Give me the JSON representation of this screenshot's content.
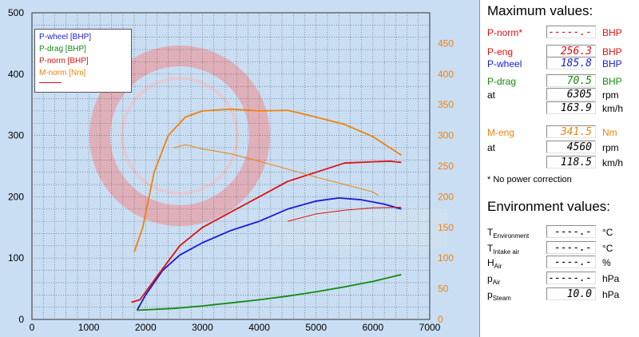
{
  "colors": {
    "wheel": "#1a1ad6",
    "drag": "#128a12",
    "norm": "#e01010",
    "torque": "#f0820a",
    "eng": "#d81515"
  },
  "legend": {
    "items": [
      {
        "label": "P-wheel [BHP]",
        "color": "#1a1ad6"
      },
      {
        "label": "P-drag [BHP]",
        "color": "#128a12"
      },
      {
        "label": "P-norm [BHP]",
        "color": "#e01010"
      },
      {
        "label": "M-norm [Nm]",
        "color": "#f0820a"
      }
    ]
  },
  "panel": {
    "max_title": "Maximum values:",
    "rows": [
      {
        "label": "P-norm*",
        "value": "-----.-",
        "unit": "BHP",
        "color": "#e01010"
      },
      {
        "label": "P-eng",
        "value": "256.3",
        "unit": "BHP",
        "color": "#e01010"
      },
      {
        "label": "P-wheel",
        "value": "185.8",
        "unit": "BHP",
        "color": "#1a1ad6"
      },
      {
        "label": "P-drag",
        "value": "70.5",
        "unit": "BHP",
        "color": "#128a12"
      },
      {
        "label": "at",
        "value": "6305",
        "unit": "rpm",
        "color": "#000000"
      },
      {
        "label": "",
        "value": "163.9",
        "unit": "km/h",
        "color": "#000000"
      },
      {
        "label": "M-eng",
        "value": "341.5",
        "unit": "Nm",
        "color": "#f0820a"
      },
      {
        "label": "at",
        "value": "4560",
        "unit": "rpm",
        "color": "#000000"
      },
      {
        "label": "",
        "value": "118.5",
        "unit": "km/h",
        "color": "#000000"
      }
    ],
    "note": "* No power correction",
    "env_title": "Environment values:",
    "env_rows": [
      {
        "label": "T",
        "sub": "Environment",
        "value": "----.-",
        "unit": "°C"
      },
      {
        "label": "T",
        "sub": "Intake air",
        "value": "----.-",
        "unit": "°C"
      },
      {
        "label": "H",
        "sub": "Air",
        "value": "----.-",
        "unit": "%"
      },
      {
        "label": "p",
        "sub": "Air",
        "value": "-----.-",
        "unit": "hPa"
      },
      {
        "label": "p",
        "sub": "Steam",
        "value": "10.0",
        "unit": "hPa"
      }
    ]
  },
  "chart_data": {
    "type": "line",
    "xlim": [
      0,
      7000
    ],
    "ylim_left": [
      0,
      500
    ],
    "ylim_right": [
      0,
      500
    ],
    "x_ticks": [
      "0",
      "1000",
      "2000",
      "3000",
      "4000",
      "5000",
      "6000",
      "7000"
    ],
    "y_ticks_left": [
      "0",
      "100",
      "200",
      "300",
      "400",
      "500"
    ],
    "y_ticks_right": [
      "0",
      "50",
      "100",
      "150",
      "200",
      "250",
      "300",
      "350",
      "400",
      "450"
    ],
    "grid": true,
    "legend_position": "top-left",
    "series": [
      {
        "name": "P-wheel [BHP]",
        "axis": "left",
        "color": "#1a1ad6",
        "x": [
          1850,
          2000,
          2300,
          2600,
          3000,
          3500,
          4000,
          4500,
          5000,
          5400,
          5800,
          6200,
          6500
        ],
        "y": [
          15,
          40,
          80,
          105,
          125,
          145,
          160,
          180,
          193,
          198,
          195,
          188,
          180
        ]
      },
      {
        "name": "P-drag [BHP]",
        "axis": "left",
        "color": "#128a12",
        "x": [
          1850,
          2500,
          3000,
          3500,
          4000,
          4500,
          5000,
          5500,
          6000,
          6500
        ],
        "y": [
          15,
          18,
          22,
          27,
          32,
          38,
          45,
          53,
          62,
          73
        ]
      },
      {
        "name": "P-norm [BHP]",
        "axis": "left",
        "color": "#e01010",
        "x": [
          1750,
          1900,
          2200,
          2600,
          3000,
          3500,
          4000,
          4500,
          5000,
          5500,
          6000,
          6300,
          6500
        ],
        "y": [
          28,
          32,
          70,
          120,
          150,
          175,
          200,
          225,
          240,
          255,
          257,
          258,
          256
        ]
      },
      {
        "name": "M-norm [Nm]",
        "axis": "right",
        "color": "#f0820a",
        "x": [
          1800,
          1950,
          2150,
          2400,
          2700,
          3000,
          3500,
          4000,
          4500,
          5000,
          5500,
          6000,
          6300,
          6500
        ],
        "y": [
          110,
          150,
          240,
          300,
          330,
          340,
          343,
          340,
          341,
          330,
          318,
          298,
          280,
          268
        ]
      },
      {
        "name": "",
        "axis": "right",
        "color": "#f0820a",
        "x": [
          2500,
          2700,
          3000,
          3500,
          4000,
          4500,
          5000,
          5500,
          6000,
          6100
        ],
        "y": [
          280,
          285,
          278,
          270,
          258,
          245,
          232,
          220,
          208,
          202
        ]
      },
      {
        "name": "",
        "axis": "left",
        "color": "#e01010",
        "x": [
          4500,
          5000,
          5500,
          6000,
          6500
        ],
        "y": [
          160,
          172,
          178,
          182,
          183
        ]
      }
    ]
  }
}
